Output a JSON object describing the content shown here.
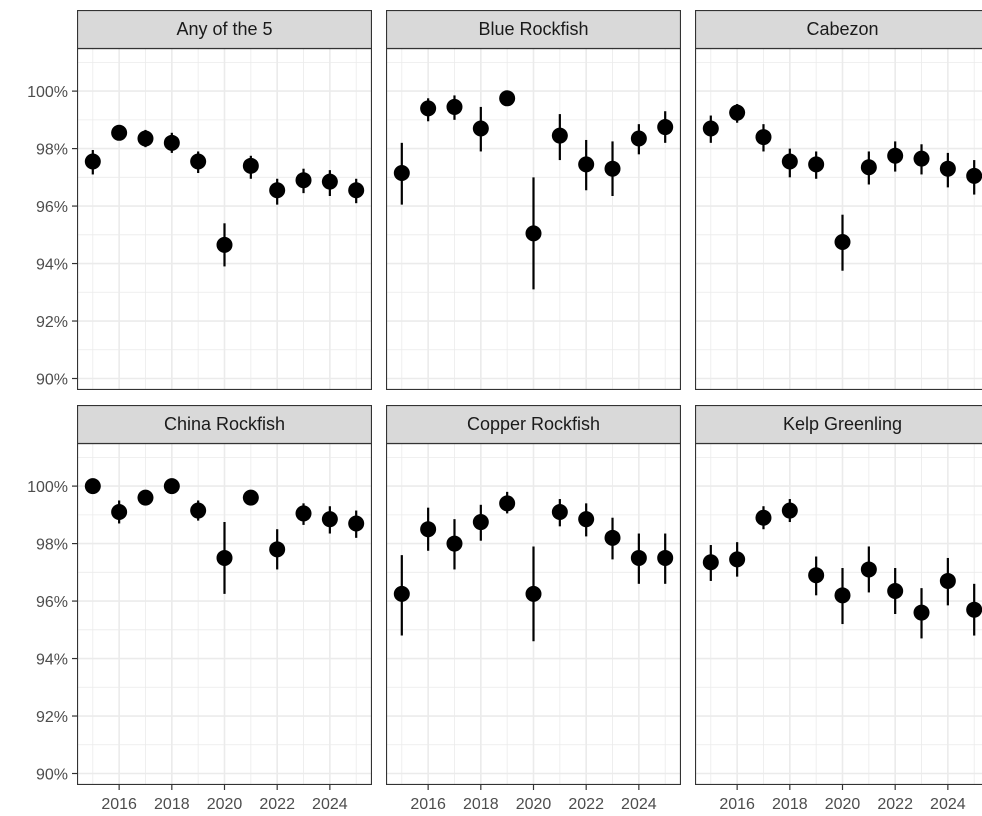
{
  "chart_data": {
    "type": "scatter",
    "layout": "facet-grid 2x3, error bars on points",
    "x_ticks": [
      2016,
      2018,
      2020,
      2022,
      2024
    ],
    "x_range": [
      2014.4,
      2025.6
    ],
    "y_ticks": [
      90,
      92,
      94,
      96,
      98,
      100
    ],
    "y_tick_labels": [
      "90%",
      "92%",
      "94%",
      "96%",
      "98%",
      "100%"
    ],
    "y_range": [
      89.6,
      101.5
    ],
    "grid": true,
    "point_color": "#000000",
    "panel_background": "#ffffff",
    "strip_fill": "#d9d9d9",
    "panel_border": "#333333",
    "grid_color": "#ebebeb",
    "panels": [
      {
        "title": "Any of the 5",
        "x": [
          2015,
          2016,
          2017,
          2018,
          2019,
          2020,
          2021,
          2022,
          2023,
          2024,
          2025
        ],
        "y": [
          97.55,
          98.55,
          98.35,
          98.2,
          97.55,
          94.65,
          97.4,
          96.55,
          96.9,
          96.85,
          96.55
        ],
        "lo": [
          97.1,
          98.3,
          98.05,
          97.85,
          97.15,
          93.9,
          96.95,
          96.05,
          96.45,
          96.35,
          96.1
        ],
        "hi": [
          97.95,
          98.8,
          98.65,
          98.55,
          97.9,
          95.4,
          97.75,
          96.95,
          97.3,
          97.25,
          96.95
        ]
      },
      {
        "title": "Blue Rockfish",
        "x": [
          2015,
          2016,
          2017,
          2018,
          2019,
          2020,
          2021,
          2022,
          2023,
          2024,
          2025
        ],
        "y": [
          97.15,
          99.4,
          99.45,
          98.7,
          99.75,
          95.05,
          98.45,
          97.45,
          97.3,
          98.35,
          98.75
        ],
        "lo": [
          96.05,
          98.95,
          99.0,
          97.9,
          99.6,
          93.1,
          97.6,
          96.55,
          96.35,
          97.8,
          98.2
        ],
        "hi": [
          98.2,
          99.75,
          99.85,
          99.45,
          99.9,
          97.0,
          99.2,
          98.3,
          98.25,
          98.85,
          99.3
        ]
      },
      {
        "title": "Cabezon",
        "x": [
          2015,
          2016,
          2017,
          2018,
          2019,
          2020,
          2021,
          2022,
          2023,
          2024,
          2025
        ],
        "y": [
          98.7,
          99.25,
          98.4,
          97.55,
          97.45,
          94.75,
          97.35,
          97.75,
          97.65,
          97.3,
          97.05
        ],
        "lo": [
          98.2,
          98.9,
          97.9,
          97.0,
          96.95,
          93.75,
          96.75,
          97.2,
          97.1,
          96.65,
          96.4
        ],
        "hi": [
          99.15,
          99.55,
          98.85,
          98.0,
          97.9,
          95.7,
          97.9,
          98.25,
          98.15,
          97.85,
          97.6
        ]
      },
      {
        "title": "China Rockfish",
        "x": [
          2015,
          2016,
          2017,
          2018,
          2019,
          2020,
          2021,
          2022,
          2023,
          2024,
          2025
        ],
        "y": [
          100.0,
          99.1,
          99.6,
          100.0,
          99.15,
          97.5,
          99.6,
          97.8,
          99.05,
          98.85,
          98.7
        ],
        "lo": [
          100.0,
          98.7,
          99.4,
          100.0,
          98.8,
          96.25,
          99.4,
          97.1,
          98.65,
          98.35,
          98.2
        ],
        "hi": [
          100.0,
          99.5,
          99.8,
          100.0,
          99.5,
          98.75,
          99.8,
          98.5,
          99.4,
          99.3,
          99.15
        ]
      },
      {
        "title": "Copper Rockfish",
        "x": [
          2015,
          2016,
          2017,
          2018,
          2019,
          2020,
          2021,
          2022,
          2023,
          2024,
          2025
        ],
        "y": [
          96.25,
          98.5,
          98.0,
          98.75,
          99.4,
          96.25,
          99.1,
          98.85,
          98.2,
          97.5,
          97.5
        ],
        "lo": [
          94.8,
          97.75,
          97.1,
          98.1,
          99.05,
          94.6,
          98.6,
          98.25,
          97.45,
          96.6,
          96.6
        ],
        "hi": [
          97.6,
          99.25,
          98.85,
          99.35,
          99.8,
          97.9,
          99.55,
          99.4,
          98.9,
          98.35,
          98.35
        ]
      },
      {
        "title": "Kelp Greenling",
        "x": [
          2015,
          2016,
          2017,
          2018,
          2019,
          2020,
          2021,
          2022,
          2023,
          2024,
          2025
        ],
        "y": [
          97.35,
          97.45,
          98.9,
          99.15,
          96.9,
          96.2,
          97.1,
          96.35,
          95.6,
          96.7,
          95.7
        ],
        "lo": [
          96.7,
          96.85,
          98.5,
          98.75,
          96.2,
          95.2,
          96.3,
          95.55,
          94.7,
          95.85,
          94.8
        ],
        "hi": [
          97.95,
          98.05,
          99.3,
          99.55,
          97.55,
          97.15,
          97.9,
          97.15,
          96.45,
          97.5,
          96.6
        ]
      }
    ]
  }
}
